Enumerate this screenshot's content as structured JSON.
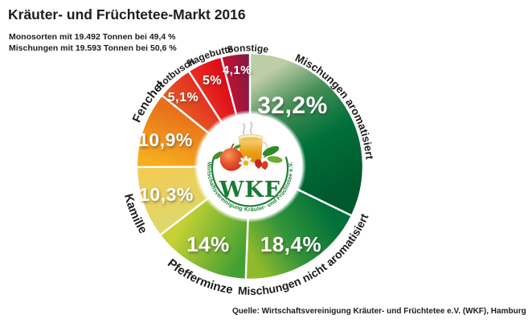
{
  "title": "Kräuter- und Früchtetee-Markt 2016",
  "subtitle_lines": [
    "Monosorten mit 19.492 Tonnen bei 49,4 %",
    "Mischungen mit 19.593 Tonnen bei 50,6 %"
  ],
  "source": "Quelle: Wirtschaftsvereinigung Kräuter- und Früchtetee e.V. (WKF), Hamburg",
  "logo": {
    "acronym": "WKF",
    "ring_text": "Wirtschaftsvereinigung Kräuter- und Früchtetee e.V."
  },
  "background_color": "#ffffff",
  "text_color": "#1d1d1b",
  "chart_data": {
    "type": "pie",
    "title": "Kräuter- und Früchtetee-Markt 2016",
    "unit": "%",
    "donut": true,
    "start_angle_deg": 0,
    "direction": "clockwise",
    "segments": [
      {
        "name": "Mischungen aromatisiert",
        "value": 32.2,
        "label": "32,2%",
        "stops": [
          {
            "offset": 0,
            "color": "#bdcda6"
          },
          {
            "offset": 0.28,
            "color": "#468e56"
          },
          {
            "offset": 0.6,
            "color": "#007039"
          },
          {
            "offset": 1,
            "color": "#00592d"
          }
        ]
      },
      {
        "name": "Mischungen nicht aromatisiert",
        "value": 18.4,
        "label": "18,4%",
        "stops": [
          {
            "offset": 0,
            "color": "#00703a"
          },
          {
            "offset": 0.55,
            "color": "#33943a"
          },
          {
            "offset": 1,
            "color": "#90ba2c"
          }
        ]
      },
      {
        "name": "Pfefferminze",
        "value": 14.0,
        "label": "14%",
        "stops": [
          {
            "offset": 0,
            "color": "#43a032"
          },
          {
            "offset": 1,
            "color": "#c5d134"
          }
        ]
      },
      {
        "name": "Kamille",
        "value": 10.3,
        "label": "10,3%",
        "stops": [
          {
            "offset": 0,
            "color": "#dfd768"
          },
          {
            "offset": 1,
            "color": "#f2cb55"
          }
        ]
      },
      {
        "name": "Fenchel",
        "value": 10.9,
        "label": "10,9%",
        "stops": [
          {
            "offset": 0,
            "color": "#f6ae1e"
          },
          {
            "offset": 1,
            "color": "#e8701a"
          }
        ]
      },
      {
        "name": "Rotbusch",
        "value": 5.1,
        "label": "5,1%",
        "stops": [
          {
            "offset": 0,
            "color": "#e6561f"
          },
          {
            "offset": 1,
            "color": "#e33122"
          }
        ]
      },
      {
        "name": "Hagebutte",
        "value": 5.0,
        "label": "5%",
        "stops": [
          {
            "offset": 0,
            "color": "#e72b22"
          },
          {
            "offset": 1,
            "color": "#de0c18"
          }
        ]
      },
      {
        "name": "Sonstige",
        "value": 4.1,
        "label": "4,1%",
        "stops": [
          {
            "offset": 0,
            "color": "#c11133"
          },
          {
            "offset": 1,
            "color": "#851a41"
          }
        ]
      }
    ]
  }
}
